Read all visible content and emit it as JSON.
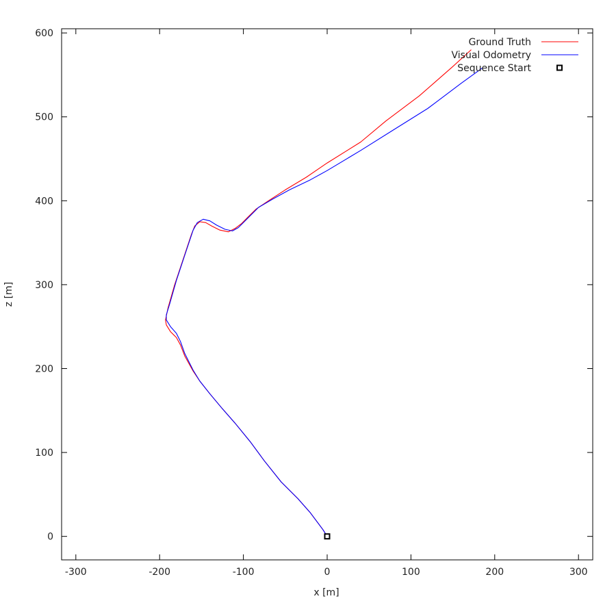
{
  "chart_data": {
    "type": "line",
    "title": "",
    "xlabel": "x [m]",
    "ylabel": "z [m]",
    "xlim": [
      -317,
      317
    ],
    "ylim": [
      -28,
      605
    ],
    "grid": false,
    "legend_position": "top-right",
    "x_ticks": [
      -300,
      -200,
      -100,
      0,
      100,
      200,
      300
    ],
    "x_tick_labels": [
      "-300",
      "-200",
      "-100",
      "0",
      "100",
      "200",
      "300"
    ],
    "y_ticks": [
      0,
      100,
      200,
      300,
      400,
      500,
      600
    ],
    "y_tick_labels": [
      "0",
      "100",
      "200",
      "300",
      "400",
      "500",
      "600"
    ],
    "series": [
      {
        "name": "Ground Truth",
        "color": "#ff0000",
        "points": [
          [
            0,
            0
          ],
          [
            -5,
            8
          ],
          [
            -20,
            28
          ],
          [
            -35,
            45
          ],
          [
            -55,
            65
          ],
          [
            -75,
            90
          ],
          [
            -92,
            113
          ],
          [
            -110,
            135
          ],
          [
            -125,
            152
          ],
          [
            -140,
            170
          ],
          [
            -152,
            185
          ],
          [
            -160,
            197
          ],
          [
            -170,
            215
          ],
          [
            -175,
            228
          ],
          [
            -180,
            237
          ],
          [
            -187,
            244
          ],
          [
            -192,
            252
          ],
          [
            -193,
            258
          ],
          [
            -190,
            272
          ],
          [
            -182,
            300
          ],
          [
            -172,
            330
          ],
          [
            -162,
            360
          ],
          [
            -158,
            370
          ],
          [
            -152,
            375
          ],
          [
            -145,
            374
          ],
          [
            -138,
            370
          ],
          [
            -128,
            365
          ],
          [
            -118,
            363
          ],
          [
            -110,
            367
          ],
          [
            -102,
            373
          ],
          [
            -95,
            380
          ],
          [
            -85,
            390
          ],
          [
            -70,
            400
          ],
          [
            -50,
            413
          ],
          [
            -25,
            428
          ],
          [
            0,
            445
          ],
          [
            40,
            470
          ],
          [
            70,
            495
          ],
          [
            110,
            525
          ],
          [
            150,
            560
          ],
          [
            172,
            580
          ]
        ]
      },
      {
        "name": "Visual Odometry",
        "color": "#0000ff",
        "points": [
          [
            0,
            0
          ],
          [
            -5,
            8
          ],
          [
            -20,
            28
          ],
          [
            -35,
            45
          ],
          [
            -55,
            65
          ],
          [
            -75,
            90
          ],
          [
            -92,
            113
          ],
          [
            -110,
            135
          ],
          [
            -125,
            152
          ],
          [
            -140,
            170
          ],
          [
            -152,
            185
          ],
          [
            -160,
            198
          ],
          [
            -170,
            218
          ],
          [
            -175,
            232
          ],
          [
            -180,
            242
          ],
          [
            -187,
            250
          ],
          [
            -192,
            258
          ],
          [
            -192,
            264
          ],
          [
            -188,
            277
          ],
          [
            -180,
            305
          ],
          [
            -170,
            335
          ],
          [
            -160,
            365
          ],
          [
            -155,
            374
          ],
          [
            -148,
            378
          ],
          [
            -140,
            376
          ],
          [
            -132,
            371
          ],
          [
            -122,
            366
          ],
          [
            -113,
            364
          ],
          [
            -106,
            368
          ],
          [
            -99,
            375
          ],
          [
            -92,
            382
          ],
          [
            -82,
            392
          ],
          [
            -65,
            402
          ],
          [
            -45,
            413
          ],
          [
            -20,
            425
          ],
          [
            0,
            436
          ],
          [
            40,
            460
          ],
          [
            80,
            485
          ],
          [
            120,
            510
          ],
          [
            160,
            540
          ],
          [
            185,
            558
          ]
        ]
      }
    ],
    "markers": [
      {
        "name": "Sequence Start",
        "x": 0,
        "z": 0,
        "shape": "square",
        "color": "#000000"
      }
    ]
  }
}
